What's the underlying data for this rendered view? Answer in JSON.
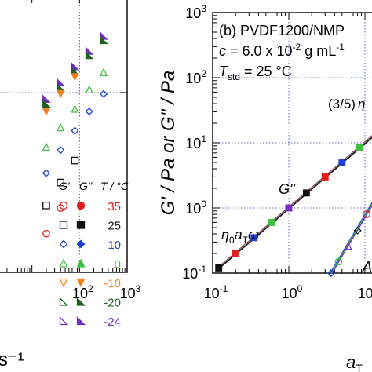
{
  "chart_data": [
    {
      "type": "scatter",
      "scale": "log-log",
      "grid": true,
      "x_axis_label": "s⁻¹",
      "xlim": [
        1,
        1000
      ],
      "x_ticks": [
        {
          "value": 100,
          "base": "10",
          "exp": "2"
        },
        {
          "value": 1000,
          "base": "10",
          "exp": "3"
        }
      ],
      "legend": {
        "placement": "bottom-right",
        "headers": [
          "G'",
          "G''",
          "T / °C"
        ],
        "entries": [
          {
            "temperature": "35",
            "open_marker": "open circle",
            "filled_marker": "filled circle",
            "color": "#e02020"
          },
          {
            "temperature": "25",
            "open_marker": "open square",
            "filled_marker": "filled square",
            "color": "#111111"
          },
          {
            "temperature": "10",
            "open_marker": "open diamond",
            "filled_marker": "filled diamond",
            "color": "#2040d0"
          },
          {
            "temperature": "0",
            "open_marker": "open triangle up",
            "filled_marker": "filled triangle up",
            "color": "#40c040"
          },
          {
            "temperature": "-10",
            "open_marker": "open triangle down",
            "filled_marker": "filled triangle down",
            "color": "#f08020"
          },
          {
            "temperature": "-20",
            "open_marker": "open corner triangle",
            "filled_marker": "filled corner triangle",
            "color": "#206020"
          },
          {
            "temperature": "-24",
            "open_marker": "open corner triangle",
            "filled_marker": "filled corner triangle",
            "color": "#7030c0"
          }
        ]
      },
      "series": [
        {
          "temperature": "-24",
          "marker": "filled",
          "color": "#7030c0",
          "x": [
            20,
            40,
            80,
            160,
            320
          ],
          "y": [
            5,
            9,
            16,
            28,
            48
          ]
        },
        {
          "temperature": "-20",
          "marker": "filled",
          "color": "#206020",
          "x": [
            20,
            40,
            80,
            160,
            320
          ],
          "y": [
            4.2,
            7.5,
            13.5,
            24,
            41
          ]
        },
        {
          "temperature": "-10",
          "marker": "filled",
          "color": "#f08020",
          "x": [
            20,
            40,
            80
          ],
          "y": [
            3.2,
            6,
            11
          ]
        },
        {
          "temperature": "0",
          "marker": "open",
          "color": "#40c040",
          "x": [
            20,
            40,
            80,
            160,
            320
          ],
          "y": [
            0.9,
            1.8,
            3.5,
            7,
            13
          ]
        },
        {
          "temperature": "10",
          "marker": "open",
          "color": "#2040d0",
          "x": [
            20,
            40,
            80,
            160,
            320
          ],
          "y": [
            0.35,
            0.8,
            1.6,
            3.2,
            6
          ]
        },
        {
          "temperature": "25",
          "marker": "open",
          "color": "#111111",
          "x": [
            20,
            40,
            80
          ],
          "y": [
            0.11,
            0.25,
            0.55
          ]
        },
        {
          "temperature": "35",
          "marker": "open",
          "color": "#e02020",
          "x": [
            20,
            40
          ],
          "y": [
            0.04,
            0.1
          ]
        }
      ]
    },
    {
      "type": "scatter",
      "scale": "log-log",
      "grid": true,
      "panel_label": "(b) PVDF1200/NMP",
      "concentration": {
        "symbol": "c",
        "equals": " = 6.0 x 10",
        "exp": "-2",
        "unit": " g mL",
        "unit_exp": "-1"
      },
      "reference_temperature": {
        "symbol": "T",
        "sub": "std",
        "value": " = 25 °C"
      },
      "y_axis_label": "G' / Pa or G'' / Pa",
      "x_axis_label_partial": "a",
      "x_axis_label_sub": "T",
      "xlim": [
        0.1,
        20
      ],
      "ylim": [
        0.1,
        1000
      ],
      "x_ticks": [
        {
          "value": 0.1,
          "base": "10",
          "exp": "-1"
        },
        {
          "value": 1,
          "base": "10",
          "exp": "0"
        },
        {
          "value": 10,
          "base": "10",
          "exp": "1"
        }
      ],
      "y_ticks": [
        {
          "value": 0.1,
          "base": "10",
          "exp": "-1"
        },
        {
          "value": 1,
          "base": "10",
          "exp": "0"
        },
        {
          "value": 10,
          "base": "10",
          "exp": "1"
        },
        {
          "value": 100,
          "base": "10",
          "exp": "2"
        },
        {
          "value": 1000,
          "base": "10",
          "exp": "3"
        }
      ],
      "annotations": {
        "slope_note": "(3/5)",
        "slope_symbol": "η",
        "gpp_label": "G''",
        "viscous_eta": "η",
        "viscous_sub0": "0",
        "viscous_a": "a",
        "viscous_subT": "T",
        "viscous_omega": "ω",
        "gp_partial": "A"
      },
      "series": [
        {
          "name": "G''",
          "marker": "filled",
          "x": [
            0.12,
            0.2,
            0.35,
            0.6,
            1,
            1.7,
            3,
            5,
            8.5,
            14
          ],
          "y": [
            0.12,
            0.2,
            0.35,
            0.6,
            1,
            1.7,
            3,
            5,
            8.5,
            14
          ]
        },
        {
          "name": "G'",
          "marker": "open",
          "x": [
            3.6,
            4.5,
            6,
            8,
            10.5,
            14
          ],
          "y": [
            0.1,
            0.15,
            0.26,
            0.45,
            0.8,
            1.45
          ]
        }
      ]
    }
  ]
}
